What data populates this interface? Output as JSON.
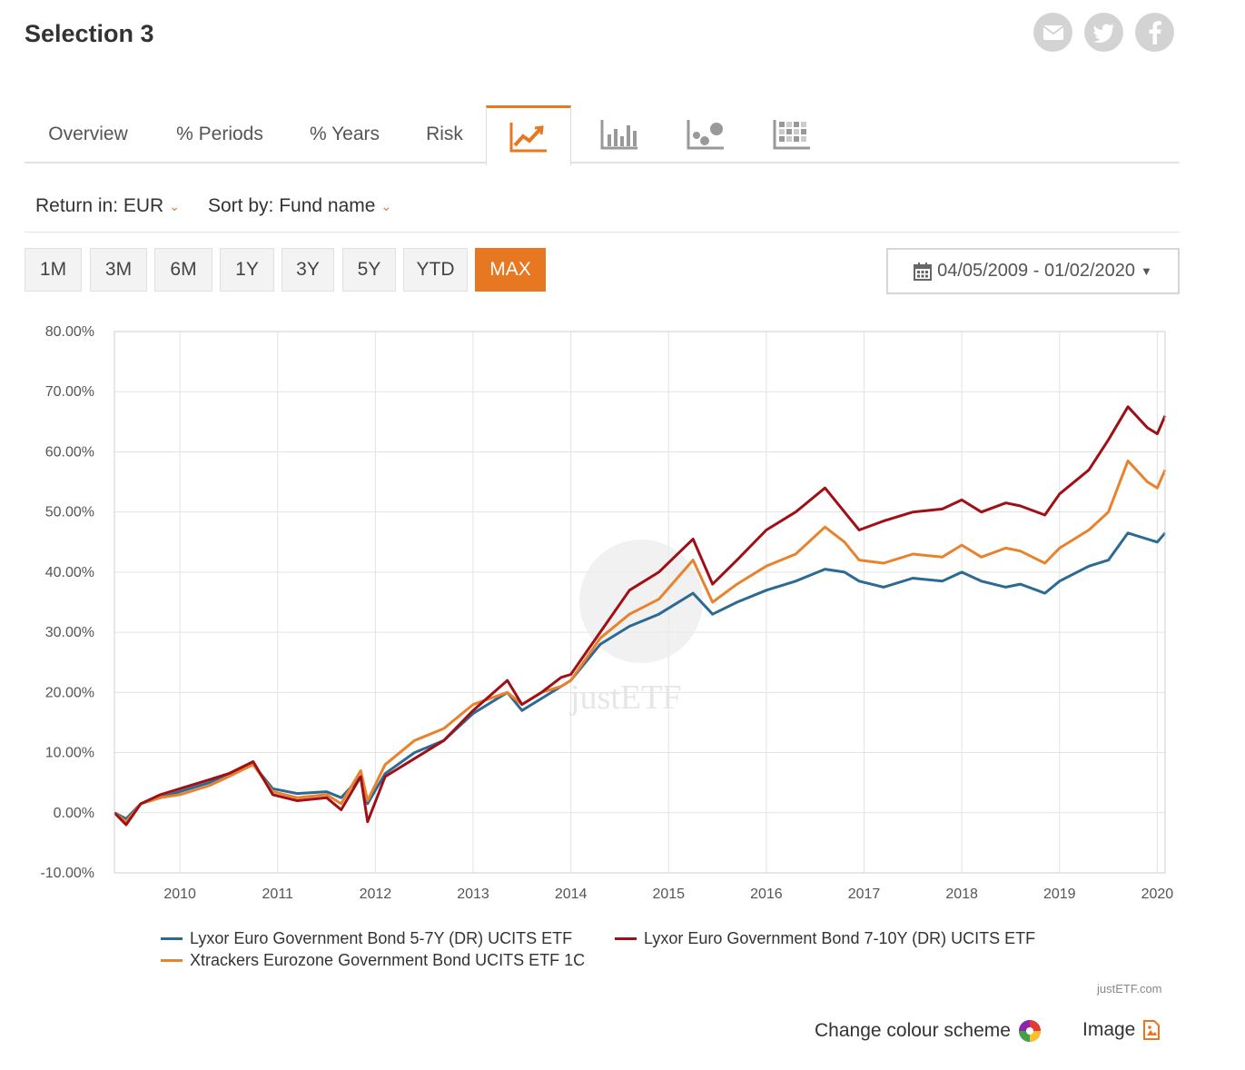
{
  "page": {
    "title": "Selection 3"
  },
  "social": [
    {
      "name": "email-icon"
    },
    {
      "name": "twitter-icon"
    },
    {
      "name": "facebook-icon"
    }
  ],
  "tabs": {
    "overview": "Overview",
    "periods": "% Periods",
    "years": "% Years",
    "risk": "Risk",
    "active": "chart-line"
  },
  "filters": {
    "return_in": "Return in: EUR",
    "sort_by": "Sort by: Fund name"
  },
  "periods": [
    "1M",
    "3M",
    "6M",
    "1Y",
    "3Y",
    "5Y",
    "YTD",
    "MAX"
  ],
  "active_period": "MAX",
  "date_range": "04/05/2009 - 01/02/2020",
  "colors": {
    "accent": "#e87722",
    "series_blue": "#2c6a93",
    "series_red": "#a10f16",
    "series_orange": "#e8822c"
  },
  "watermark": "justETF",
  "credit": "justETF.com",
  "footer": {
    "change_colour": "Change colour scheme",
    "image": "Image"
  },
  "chart_data": {
    "type": "line",
    "ylim": [
      -10,
      80
    ],
    "yticks": [
      -10,
      0,
      10,
      20,
      30,
      40,
      50,
      60,
      70,
      80
    ],
    "ytick_labels": [
      "-10.00%",
      "0.00%",
      "10.00%",
      "20.00%",
      "30.00%",
      "40.00%",
      "50.00%",
      "60.00%",
      "70.00%",
      "80.00%"
    ],
    "xlim": [
      2009.33,
      2020.08
    ],
    "xticks": [
      2010,
      2011,
      2012,
      2013,
      2014,
      2015,
      2016,
      2017,
      2018,
      2019,
      2020
    ],
    "xtick_labels": [
      "2010",
      "2011",
      "2012",
      "2013",
      "2014",
      "2015",
      "2016",
      "2017",
      "2018",
      "2019",
      "2020"
    ],
    "series": [
      {
        "name": "Lyxor Euro Government Bond 5-7Y (DR) UCITS ETF",
        "color": "#2c6a93",
        "x": [
          2009.33,
          2009.45,
          2009.6,
          2009.8,
          2010.0,
          2010.3,
          2010.5,
          2010.75,
          2010.95,
          2011.2,
          2011.5,
          2011.65,
          2011.85,
          2011.92,
          2012.1,
          2012.4,
          2012.7,
          2013.0,
          2013.35,
          2013.5,
          2013.7,
          2013.9,
          2014.0,
          2014.3,
          2014.6,
          2014.9,
          2015.25,
          2015.45,
          2015.7,
          2016.0,
          2016.3,
          2016.6,
          2016.8,
          2016.95,
          2017.2,
          2017.5,
          2017.8,
          2018.0,
          2018.2,
          2018.45,
          2018.6,
          2018.85,
          2019.0,
          2019.3,
          2019.5,
          2019.7,
          2019.9,
          2020.0,
          2020.08
        ],
        "y": [
          0,
          -1,
          1.5,
          2.5,
          3.5,
          5,
          6.5,
          8,
          4,
          3.2,
          3.5,
          2.5,
          6,
          1.5,
          6.5,
          10,
          12,
          16.5,
          20,
          17,
          19,
          21,
          22,
          28,
          31,
          33,
          36.5,
          33,
          35,
          37,
          38.5,
          40.5,
          40,
          38.5,
          37.5,
          39,
          38.5,
          40,
          38.5,
          37.5,
          38,
          36.5,
          38.5,
          41,
          42,
          46.5,
          45.5,
          45,
          46.5
        ]
      },
      {
        "name": "Lyxor Euro Government Bond 7-10Y (DR) UCITS ETF",
        "color": "#a10f16",
        "x": [
          2009.33,
          2009.45,
          2009.6,
          2009.8,
          2010.0,
          2010.3,
          2010.5,
          2010.75,
          2010.95,
          2011.2,
          2011.5,
          2011.65,
          2011.85,
          2011.92,
          2012.1,
          2012.4,
          2012.7,
          2013.0,
          2013.35,
          2013.5,
          2013.7,
          2013.9,
          2014.0,
          2014.3,
          2014.6,
          2014.9,
          2015.25,
          2015.45,
          2015.7,
          2016.0,
          2016.3,
          2016.6,
          2016.8,
          2016.95,
          2017.2,
          2017.5,
          2017.8,
          2018.0,
          2018.2,
          2018.45,
          2018.6,
          2018.85,
          2019.0,
          2019.3,
          2019.5,
          2019.7,
          2019.9,
          2020.0,
          2020.08
        ],
        "y": [
          0,
          -2,
          1.5,
          3,
          4,
          5.5,
          6.5,
          8.5,
          3,
          2,
          2.5,
          0.5,
          6,
          -1.5,
          6,
          9,
          12,
          17,
          22,
          18,
          20,
          22.5,
          23,
          30,
          37,
          40,
          45.5,
          38,
          42,
          47,
          50,
          54,
          50,
          47,
          48.5,
          50,
          50.5,
          52,
          50,
          51.5,
          51,
          49.5,
          53,
          57,
          62,
          67.5,
          64,
          63,
          66
        ]
      },
      {
        "name": "Xtrackers Eurozone Government Bond UCITS ETF 1C",
        "color": "#e8822c",
        "x": [
          2009.33,
          2009.45,
          2009.6,
          2009.8,
          2010.0,
          2010.3,
          2010.5,
          2010.75,
          2010.95,
          2011.2,
          2011.5,
          2011.65,
          2011.85,
          2011.92,
          2012.1,
          2012.4,
          2012.7,
          2013.0,
          2013.35,
          2013.5,
          2013.7,
          2013.9,
          2014.0,
          2014.3,
          2014.6,
          2014.9,
          2015.25,
          2015.45,
          2015.7,
          2016.0,
          2016.3,
          2016.6,
          2016.8,
          2016.95,
          2017.2,
          2017.5,
          2017.8,
          2018.0,
          2018.2,
          2018.45,
          2018.6,
          2018.85,
          2019.0,
          2019.3,
          2019.5,
          2019.7,
          2019.9,
          2020.0,
          2020.08
        ],
        "y": [
          0,
          -1.5,
          1.5,
          2.5,
          3,
          4.5,
          6,
          8,
          3.5,
          2.5,
          3,
          1.5,
          7,
          2,
          8,
          12,
          14,
          18,
          20,
          18,
          20,
          21,
          22,
          29,
          33,
          35.5,
          42,
          35,
          38,
          41,
          43,
          47.5,
          45,
          42,
          41.5,
          43,
          42.5,
          44.5,
          42.5,
          44,
          43.5,
          41.5,
          44,
          47,
          50,
          58.5,
          55,
          54,
          57
        ]
      }
    ]
  }
}
